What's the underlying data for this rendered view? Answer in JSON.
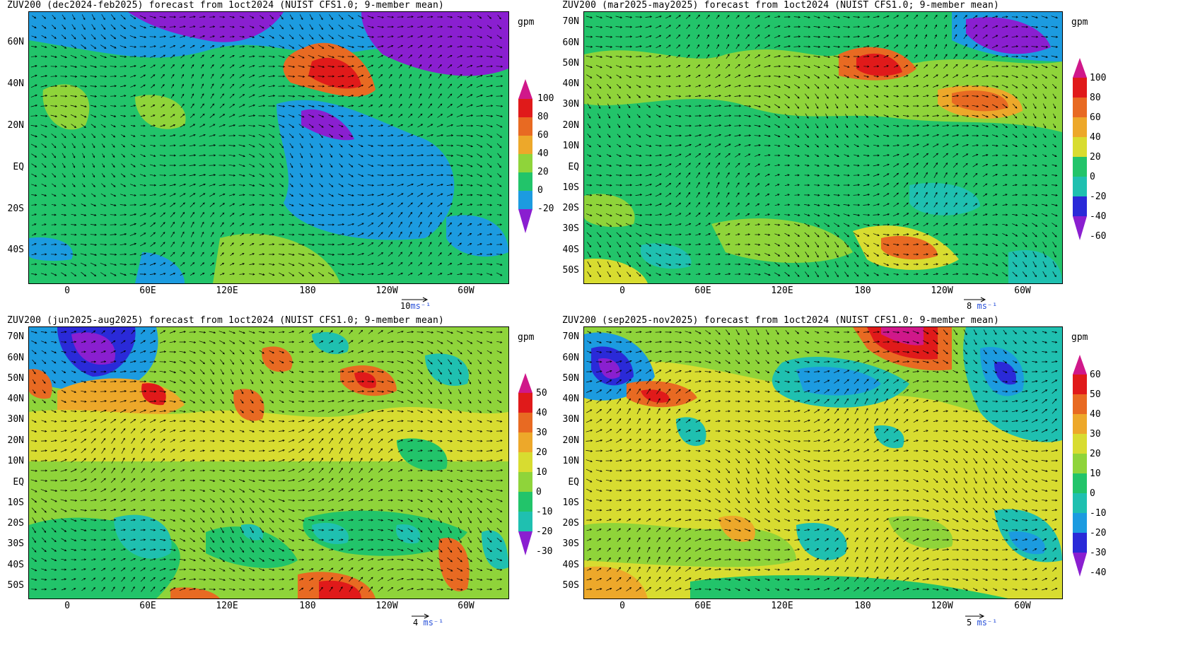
{
  "panels": [
    {
      "title": "ZUV200 (dec2024-feb2025) forecast from 1oct2024 (NUIST CFS1.0; 9-member mean)",
      "units": "gpm",
      "lat_labels": [
        "60N",
        "40N",
        "20N",
        "EQ",
        "20S",
        "40S"
      ],
      "lon_labels": [
        "0",
        "60E",
        "120E",
        "180",
        "120W",
        "60W"
      ],
      "colorbar_ticks": [
        "100",
        "80",
        "60",
        "40",
        "20",
        "0",
        "-20"
      ],
      "ref_vector": {
        "value": "10",
        "unit": "ms⁻¹"
      }
    },
    {
      "title": "ZUV200 (mar2025-may2025) forecast from 1oct2024 (NUIST CFS1.0; 9-member mean)",
      "units": "gpm",
      "lat_labels": [
        "70N",
        "60N",
        "50N",
        "40N",
        "30N",
        "20N",
        "10N",
        "EQ",
        "10S",
        "20S",
        "30S",
        "40S",
        "50S"
      ],
      "lon_labels": [
        "0",
        "60E",
        "120E",
        "180",
        "120W",
        "60W"
      ],
      "colorbar_ticks": [
        "100",
        "80",
        "60",
        "40",
        "20",
        "0",
        "-20",
        "-40",
        "-60"
      ],
      "ref_vector": {
        "value": "8",
        "unit": "ms⁻¹"
      }
    },
    {
      "title": "ZUV200 (jun2025-aug2025) forecast from 1oct2024 (NUIST CFS1.0; 9-member mean)",
      "units": "gpm",
      "lat_labels": [
        "70N",
        "60N",
        "50N",
        "40N",
        "30N",
        "20N",
        "10N",
        "EQ",
        "10S",
        "20S",
        "30S",
        "40S",
        "50S"
      ],
      "lon_labels": [
        "0",
        "60E",
        "120E",
        "180",
        "120W",
        "60W"
      ],
      "colorbar_ticks": [
        "50",
        "40",
        "30",
        "20",
        "10",
        "0",
        "-10",
        "-20",
        "-30"
      ],
      "ref_vector": {
        "value": "4",
        "unit": "ms⁻¹"
      }
    },
    {
      "title": "ZUV200 (sep2025-nov2025) forecast from 1oct2024 (NUIST CFS1.0; 9-member mean)",
      "units": "gpm",
      "lat_labels": [
        "70N",
        "60N",
        "50N",
        "40N",
        "30N",
        "20N",
        "10N",
        "EQ",
        "10S",
        "20S",
        "30S",
        "40S",
        "50S"
      ],
      "lon_labels": [
        "0",
        "60E",
        "120E",
        "180",
        "120W",
        "60W"
      ],
      "colorbar_ticks": [
        "60",
        "50",
        "40",
        "30",
        "20",
        "10",
        "0",
        "-10",
        "-20",
        "-30",
        "-40"
      ],
      "ref_vector": {
        "value": "5",
        "unit": "ms⁻¹"
      }
    }
  ],
  "palette": [
    "#8a1fd0",
    "#2a2ad8",
    "#1c9be0",
    "#1fc0b0",
    "#22c46a",
    "#8fd43a",
    "#d8dc30",
    "#eda82a",
    "#e86a22",
    "#e01a1a",
    "#d0188a"
  ]
}
